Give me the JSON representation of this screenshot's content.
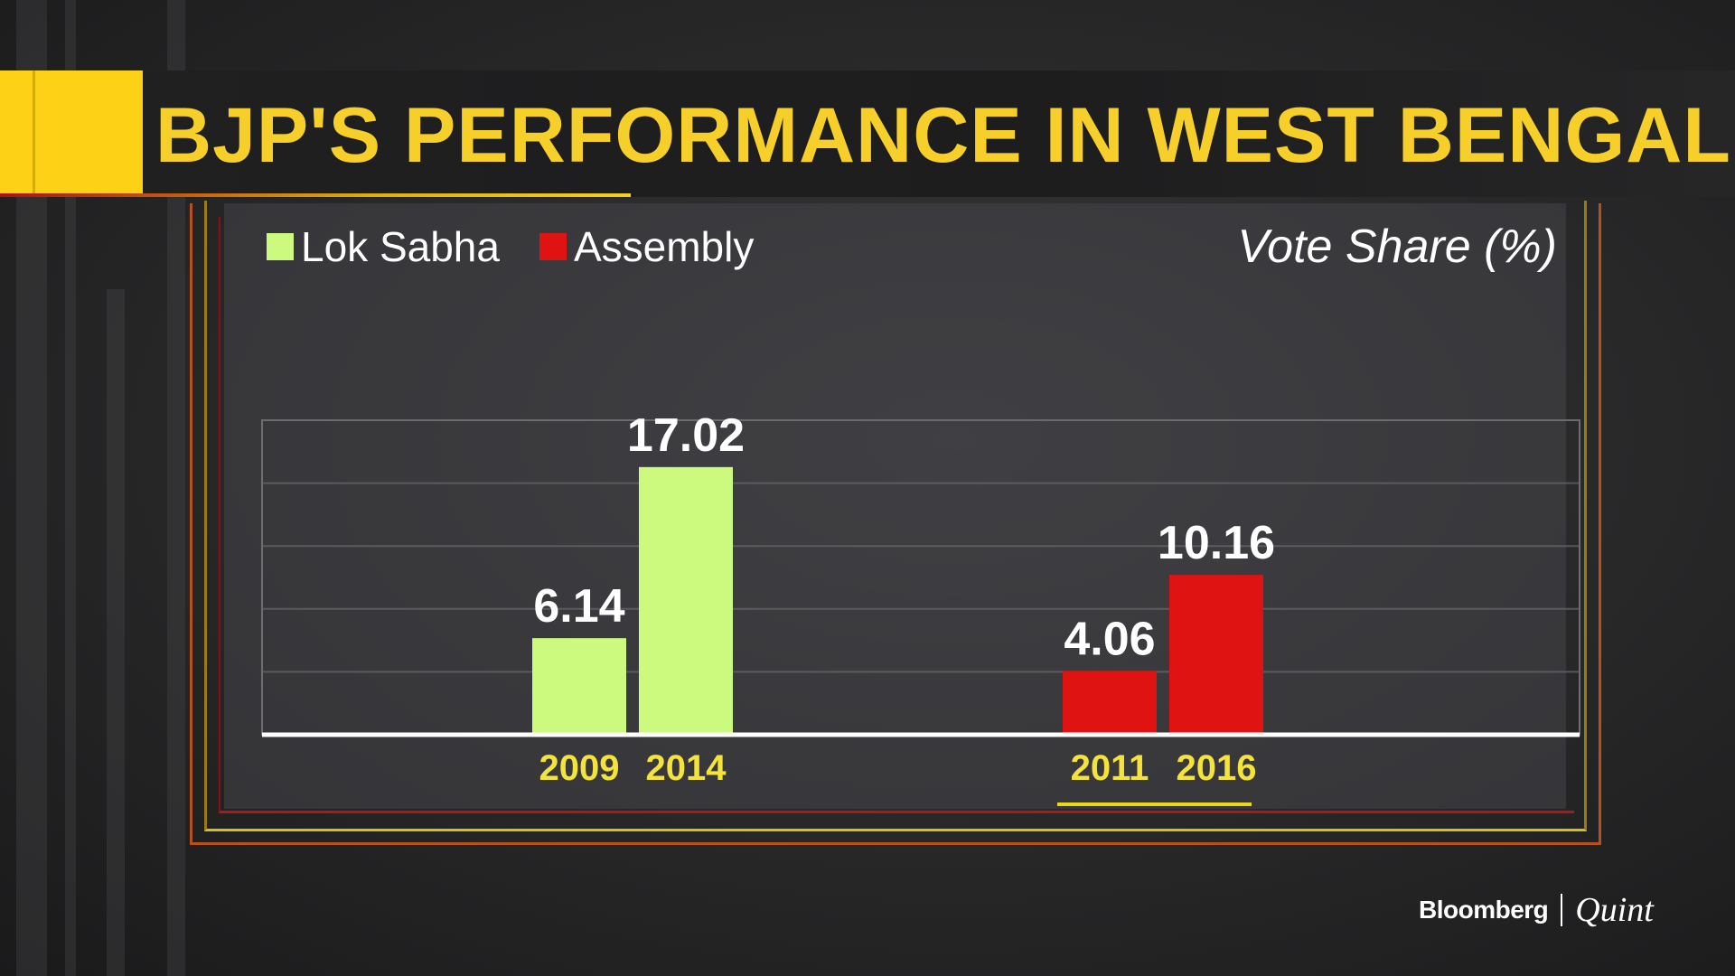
{
  "header": {
    "title": "BJP'S PERFORMANCE IN WEST BENGAL"
  },
  "brand": {
    "primary": "Bloomberg",
    "secondary": "Quint"
  },
  "colors": {
    "title": "#f7cf2a",
    "accent_yellow": "#fcd116",
    "lok_sabha": "#ccfa7f",
    "assembly": "#e01313",
    "tick_label": "#f3e33a"
  },
  "chart_data": {
    "type": "bar",
    "unit_label": "Vote Share (%)",
    "ylim": [
      0,
      20
    ],
    "grid": true,
    "legend_position": "top-left",
    "series": [
      {
        "name": "Lok Sabha",
        "color": "#ccfa7f",
        "points": [
          {
            "x": "2009",
            "value": 6.14
          },
          {
            "x": "2014",
            "value": 17.02
          }
        ]
      },
      {
        "name": "Assembly",
        "color": "#e01313",
        "points": [
          {
            "x": "2011",
            "value": 4.06
          },
          {
            "x": "2016",
            "value": 10.16
          }
        ]
      }
    ]
  }
}
